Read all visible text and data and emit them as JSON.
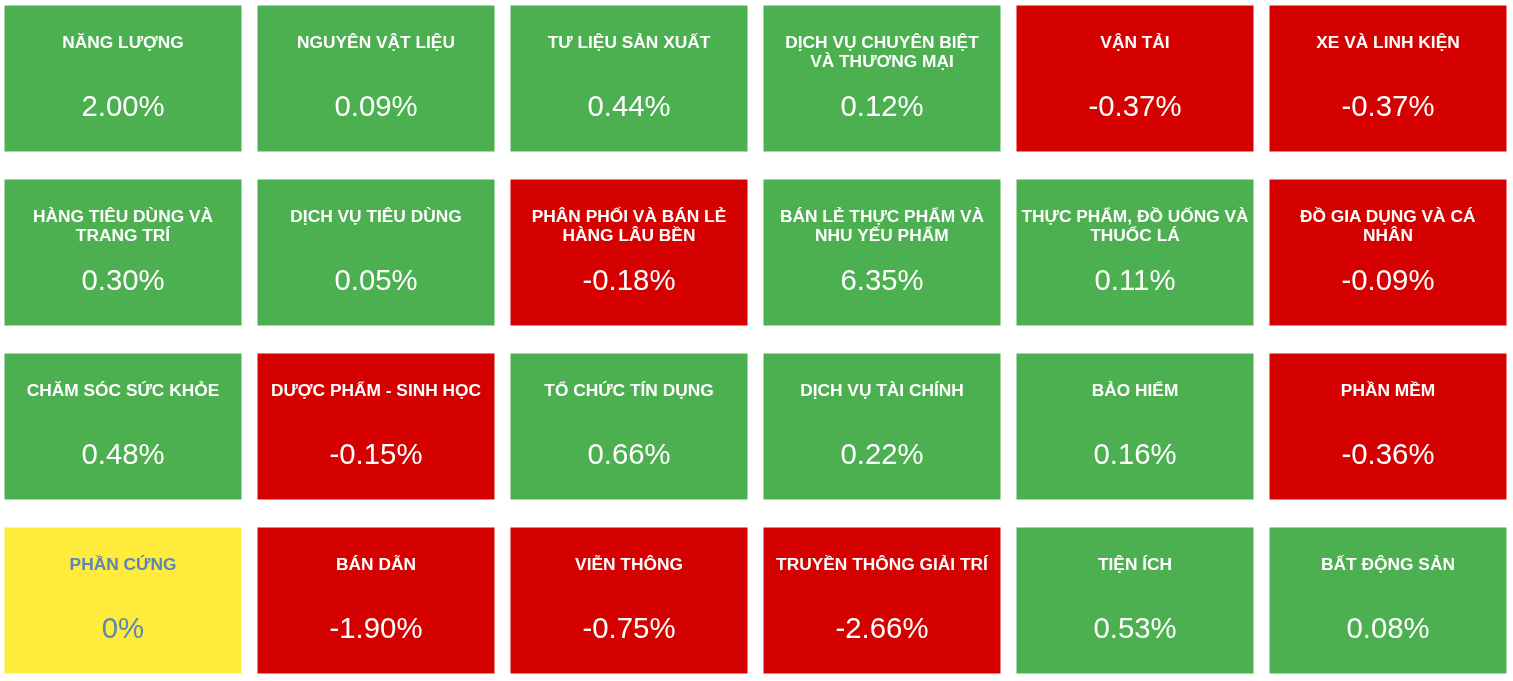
{
  "chart_data": {
    "type": "other",
    "categories": [
      "NĂNG LƯỢNG",
      "NGUYÊN VẬT LIỆU",
      "TƯ LIỆU SẢN XUẤT",
      "DỊCH VỤ CHUYÊN BIỆT VÀ THƯƠNG MẠI",
      "VẬN TẢI",
      "XE VÀ LINH KIỆN",
      "HÀNG TIÊU DÙNG VÀ TRANG TRÍ",
      "DỊCH VỤ TIÊU DÙNG",
      "PHÂN PHỐI VÀ BÁN LẺ HÀNG LÂU BỀN",
      "BÁN LẺ THỰC PHẨM VÀ NHU YẾU PHẨM",
      "THỰC PHẨM, ĐỒ UỐNG VÀ THUỐC LÁ",
      "ĐỒ GIA DỤNG VÀ CÁ NHÂN",
      "CHĂM SÓC SỨC KHỎE",
      "DƯỢC PHẨM - SINH HỌC",
      "TỔ CHỨC TÍN DỤNG",
      "DỊCH VỤ TÀI CHÍNH",
      "BẢO HIỂM",
      "PHẦN MỀM",
      "PHẦN CỨNG",
      "BÁN DẪN",
      "VIỄN THÔNG",
      "TRUYỀN THÔNG GIẢI TRÍ",
      "TIỆN ÍCH",
      "BẤT ĐỘNG SẢN"
    ],
    "values": [
      2.0,
      0.09,
      0.44,
      0.12,
      -0.37,
      -0.37,
      0.3,
      0.05,
      -0.18,
      6.35,
      0.11,
      -0.09,
      0.48,
      -0.15,
      0.66,
      0.22,
      0.16,
      -0.36,
      0,
      -1.9,
      -0.75,
      -2.66,
      0.53,
      0.08
    ],
    "value_labels": [
      "2.00%",
      "0.09%",
      "0.44%",
      "0.12%",
      "-0.37%",
      "-0.37%",
      "0.30%",
      "0.05%",
      "-0.18%",
      "6.35%",
      "0.11%",
      "-0.09%",
      "0.48%",
      "-0.15%",
      "0.66%",
      "0.22%",
      "0.16%",
      "-0.36%",
      "0%",
      "-1.90%",
      "-0.75%",
      "-2.66%",
      "0.53%",
      "0.08%"
    ],
    "colors": [
      "#4caf50",
      "#4caf50",
      "#4caf50",
      "#4caf50",
      "#d50000",
      "#d50000",
      "#4caf50",
      "#4caf50",
      "#d50000",
      "#4caf50",
      "#4caf50",
      "#d50000",
      "#4caf50",
      "#d50000",
      "#4caf50",
      "#4caf50",
      "#4caf50",
      "#d50000",
      "#ffeb3b",
      "#d50000",
      "#d50000",
      "#d50000",
      "#4caf50",
      "#4caf50"
    ]
  }
}
